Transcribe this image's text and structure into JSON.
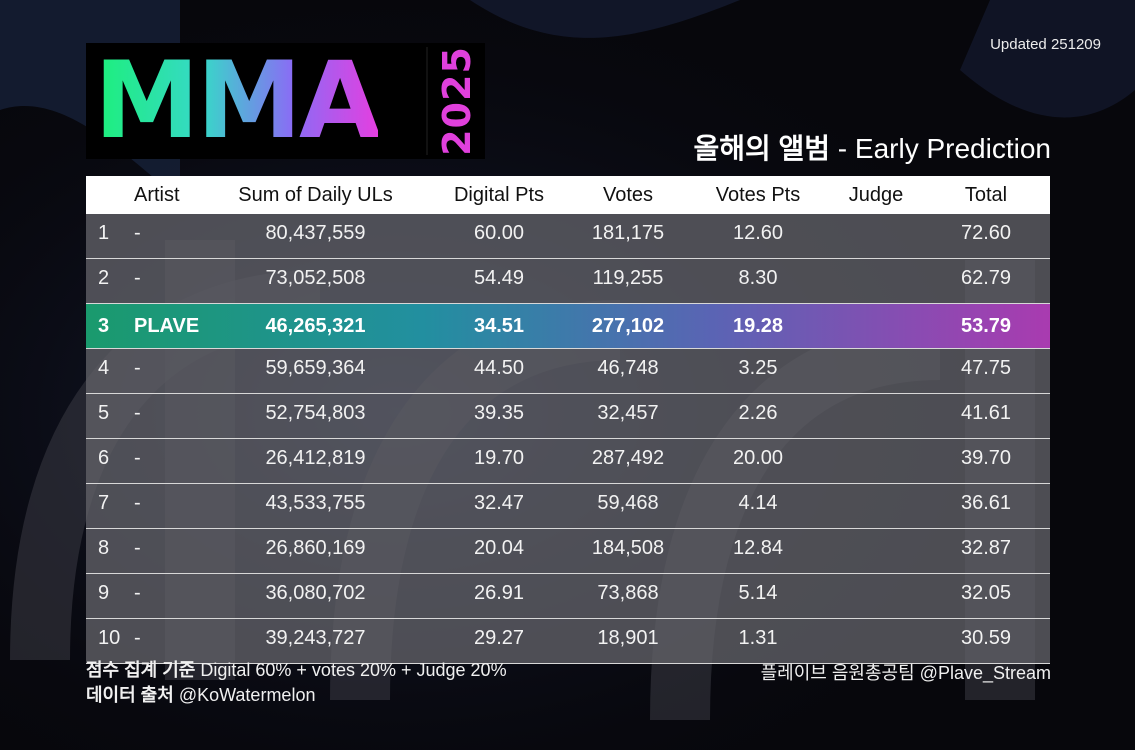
{
  "header": {
    "logo_text": "MMA",
    "logo_year": "2025",
    "updated": "Updated 251209",
    "subtitle_ko": "올해의 앨범",
    "subtitle_en": " - Early Prediction"
  },
  "colors": {
    "logo_gradient": [
      "#1cf07a",
      "#37d8c8",
      "#8a6cf5",
      "#e43fe0"
    ],
    "highlight_gradient": [
      "#1a9a6d",
      "#228fa0",
      "#5a64b4",
      "#a93bb0"
    ],
    "row_background": "#626268",
    "header_background": "#ffffff"
  },
  "chart_data": {
    "type": "table",
    "columns": [
      "",
      "Artist",
      "Sum of Daily ULs",
      "Digital Pts",
      "Votes",
      "Votes Pts",
      "Judge",
      "Total"
    ],
    "highlight_rank": "3",
    "rows": [
      {
        "rank": "1",
        "artist": "-",
        "uls": "80,437,559",
        "digital_pts": "60.00",
        "votes": "181,175",
        "votes_pts": "12.60",
        "judge": "",
        "total": "72.60"
      },
      {
        "rank": "2",
        "artist": "-",
        "uls": "73,052,508",
        "digital_pts": "54.49",
        "votes": "119,255",
        "votes_pts": "8.30",
        "judge": "",
        "total": "62.79"
      },
      {
        "rank": "3",
        "artist": "PLAVE",
        "uls": "46,265,321",
        "digital_pts": "34.51",
        "votes": "277,102",
        "votes_pts": "19.28",
        "judge": "",
        "total": "53.79"
      },
      {
        "rank": "4",
        "artist": "-",
        "uls": "59,659,364",
        "digital_pts": "44.50",
        "votes": "46,748",
        "votes_pts": "3.25",
        "judge": "",
        "total": "47.75"
      },
      {
        "rank": "5",
        "artist": "-",
        "uls": "52,754,803",
        "digital_pts": "39.35",
        "votes": "32,457",
        "votes_pts": "2.26",
        "judge": "",
        "total": "41.61"
      },
      {
        "rank": "6",
        "artist": "-",
        "uls": "26,412,819",
        "digital_pts": "19.70",
        "votes": "287,492",
        "votes_pts": "20.00",
        "judge": "",
        "total": "39.70"
      },
      {
        "rank": "7",
        "artist": "-",
        "uls": "43,533,755",
        "digital_pts": "32.47",
        "votes": "59,468",
        "votes_pts": "4.14",
        "judge": "",
        "total": "36.61"
      },
      {
        "rank": "8",
        "artist": "-",
        "uls": "26,860,169",
        "digital_pts": "20.04",
        "votes": "184,508",
        "votes_pts": "12.84",
        "judge": "",
        "total": "32.87"
      },
      {
        "rank": "9",
        "artist": "-",
        "uls": "36,080,702",
        "digital_pts": "26.91",
        "votes": "73,868",
        "votes_pts": "5.14",
        "judge": "",
        "total": "32.05"
      },
      {
        "rank": "10",
        "artist": "-",
        "uls": "39,243,727",
        "digital_pts": "29.27",
        "votes": "18,901",
        "votes_pts": "1.31",
        "judge": "",
        "total": "30.59"
      }
    ]
  },
  "footer": {
    "criteria_label": "점수 집계 기준",
    "criteria_text": " Digital 60% + votes 20% + Judge 20%",
    "source_label": "데이터 출처",
    "source_text": " @KoWatermelon",
    "credit": "플레이브 음원총공팀 @Plave_Stream"
  }
}
